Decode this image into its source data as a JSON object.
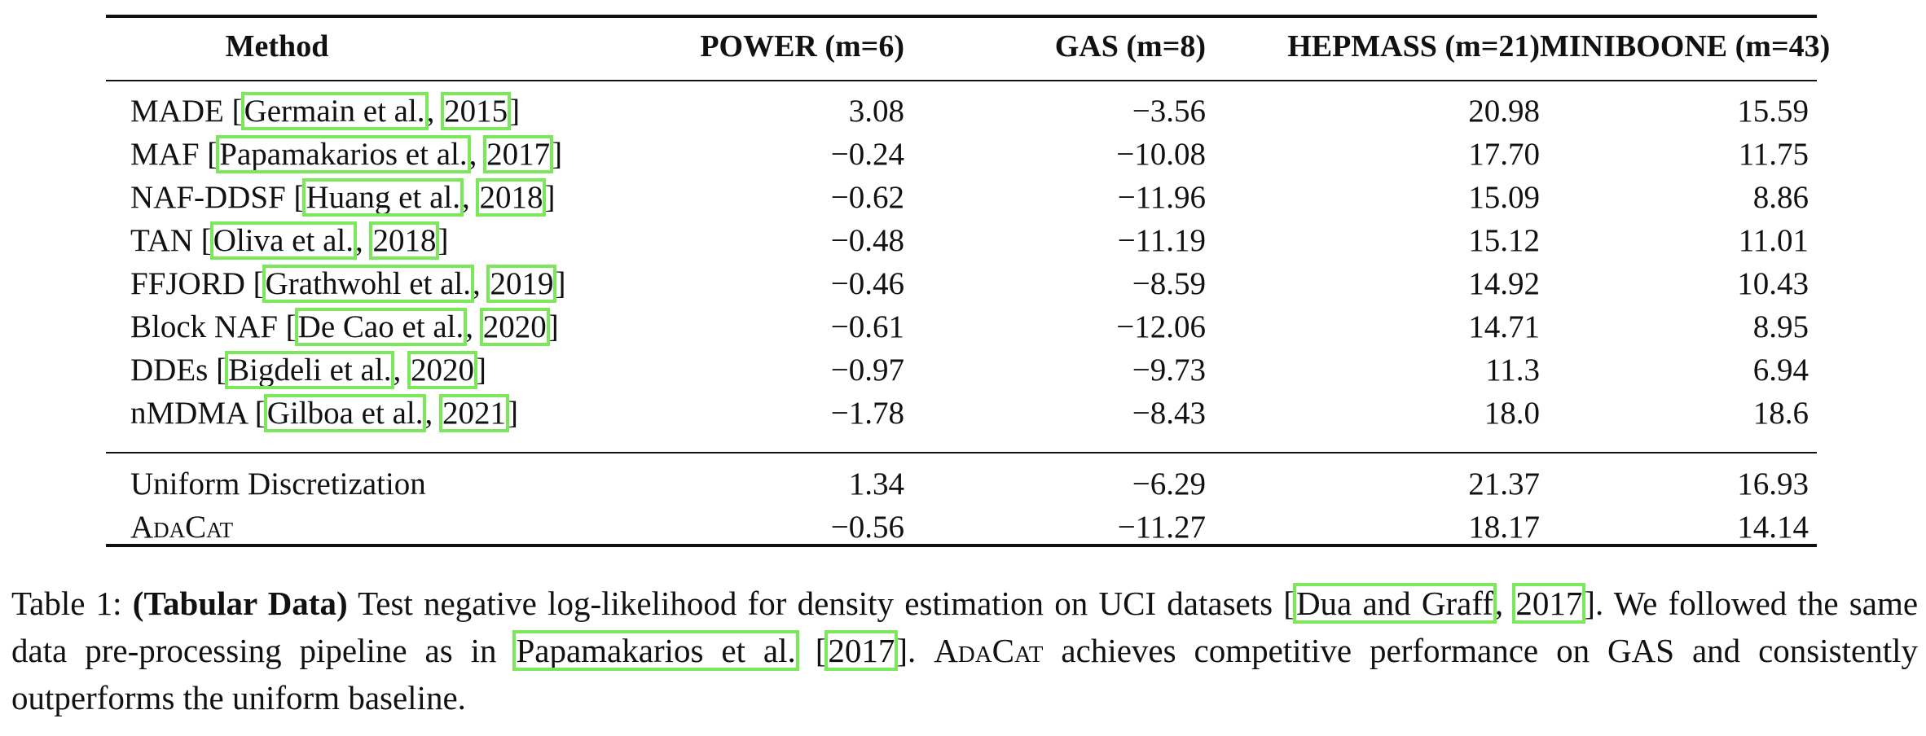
{
  "table": {
    "headers": {
      "method": "Method",
      "power": "POWER (m=6)",
      "gas": "GAS (m=8)",
      "hepmass": "HEPMASS (m=21)",
      "miniboone": "MINIBOONE (m=43)"
    },
    "rows": [
      {
        "name": "MADE",
        "cite_author": "Germain et al.",
        "cite_year": "2015",
        "power": "3.08",
        "gas": "−3.56",
        "hepmass": "20.98",
        "miniboone": "15.59"
      },
      {
        "name": "MAF",
        "cite_author": "Papamakarios et al.",
        "cite_year": "2017",
        "power": "−0.24",
        "gas": "−10.08",
        "hepmass": "17.70",
        "miniboone": "11.75"
      },
      {
        "name": "NAF-DDSF",
        "cite_author": "Huang et al.",
        "cite_year": "2018",
        "power": "−0.62",
        "gas": "−11.96",
        "hepmass": "15.09",
        "miniboone": "8.86"
      },
      {
        "name": "TAN",
        "cite_author": "Oliva et al.",
        "cite_year": "2018",
        "power": "−0.48",
        "gas": "−11.19",
        "hepmass": "15.12",
        "miniboone": "11.01"
      },
      {
        "name": "FFJORD",
        "cite_author": "Grathwohl et al.",
        "cite_year": "2019",
        "power": "−0.46",
        "gas": "−8.59",
        "hepmass": "14.92",
        "miniboone": "10.43"
      },
      {
        "name": "Block NAF",
        "cite_author": "De Cao et al.",
        "cite_year": "2020",
        "power": "−0.61",
        "gas": "−12.06",
        "hepmass": "14.71",
        "miniboone": "8.95"
      },
      {
        "name": "DDEs",
        "cite_author": "Bigdeli et al.",
        "cite_year": "2020",
        "power": "−0.97",
        "gas": "−9.73",
        "hepmass": "11.3",
        "miniboone": "6.94"
      },
      {
        "name": "nMDMA",
        "cite_author": "Gilboa et al.",
        "cite_year": "2021",
        "power": "−1.78",
        "gas": "−8.43",
        "hepmass": "18.0",
        "miniboone": "18.6"
      }
    ],
    "ours": [
      {
        "name": "Uniform Discretization",
        "power": "1.34",
        "gas": "−6.29",
        "hepmass": "21.37",
        "miniboone": "16.93"
      },
      {
        "name": "AdaCat",
        "power": "−0.56",
        "gas": "−11.27",
        "hepmass": "18.17",
        "miniboone": "14.14"
      }
    ]
  },
  "caption": {
    "label": "Table 1:",
    "bold": "(Tabular Data)",
    "text1": "Test negative log-likelihood for density estimation on UCI datasets [",
    "cite1_author": "Dua and Graff",
    "cite1_year": "2017",
    "text2": "]. We followed the same data pre-processing pipeline as in ",
    "cite2_author": "Papamakarios et al.",
    "cite2_year": "2017",
    "method": "AdaCat",
    "text3": " achieves competitive performance on GAS and consistently outperforms the uniform baseline."
  }
}
